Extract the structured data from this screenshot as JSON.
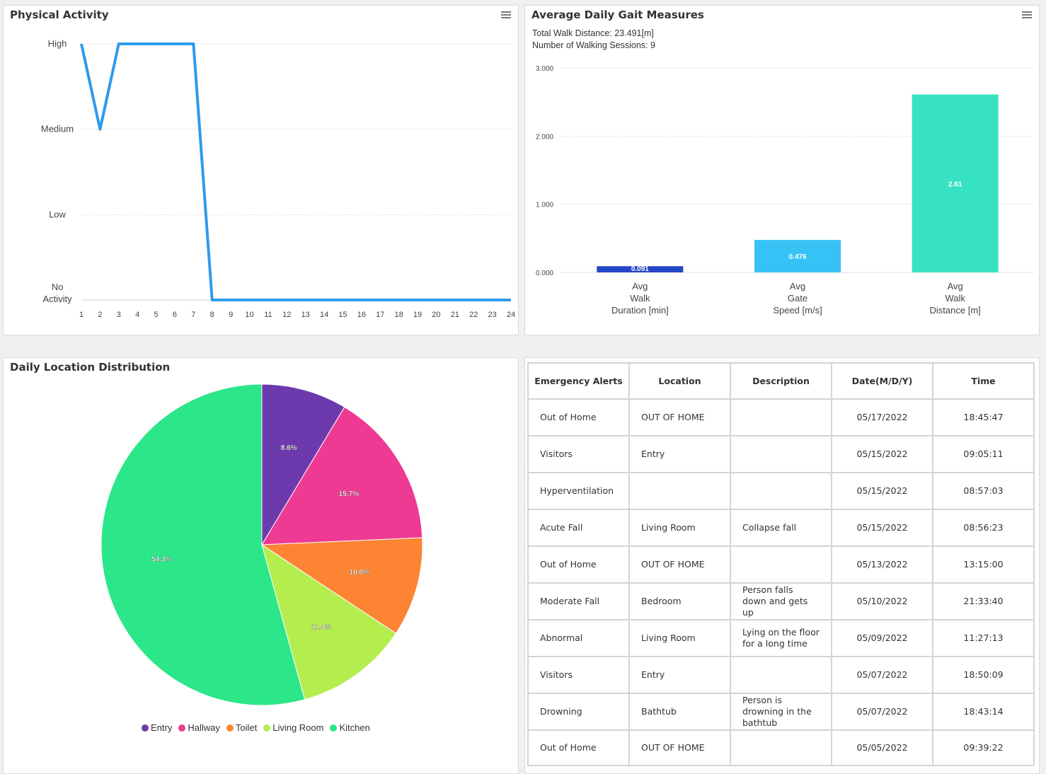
{
  "physical_activity": {
    "title": "Physical Activity",
    "menu_icon": "hamburger-menu-icon",
    "chart_data": {
      "type": "line",
      "x": [
        1,
        2,
        3,
        4,
        5,
        6,
        7,
        8,
        9,
        10,
        11,
        12,
        13,
        14,
        15,
        16,
        17,
        18,
        19,
        20,
        21,
        22,
        23,
        24
      ],
      "y_levels": [
        "No Activity",
        "Low",
        "Medium",
        "High"
      ],
      "series": [
        {
          "values": [
            3,
            2,
            3,
            3,
            3,
            3,
            3,
            0,
            0,
            0,
            0,
            0,
            0,
            0,
            0,
            0,
            0,
            0,
            0,
            0,
            0,
            0,
            0,
            0
          ]
        }
      ],
      "color": "#2e9bec",
      "grid": true
    }
  },
  "gait": {
    "title": "Average Daily Gait Measures",
    "menu_icon": "hamburger-menu-icon",
    "total_distance": "Total Walk Distance: 23.491[m]",
    "sessions": "Number of Walking Sessions: 9",
    "chart_data": {
      "type": "bar",
      "categories": [
        [
          "Avg",
          "Walk",
          "Duration [min]"
        ],
        [
          "Avg",
          "Gate",
          "Speed [m/s]"
        ],
        [
          "Avg",
          "Walk",
          "Distance [m]"
        ]
      ],
      "values": [
        0.091,
        0.476,
        2.61
      ],
      "labels": [
        "0.091",
        "0.476",
        "2.61"
      ],
      "colors": [
        "#2546c7",
        "#37c2f5",
        "#37e2c2"
      ],
      "yticks": [
        "0.000",
        "1.000",
        "2.000",
        "3.000"
      ],
      "ylim": [
        0,
        3
      ],
      "grid": true
    }
  },
  "location": {
    "title": "Daily Location Distribution",
    "chart_data": {
      "type": "pie",
      "categories": [
        "Entry",
        "Hallway",
        "Toilet",
        "Living Room",
        "Kitchen"
      ],
      "values": [
        8.6,
        15.7,
        10.0,
        11.4,
        54.3
      ],
      "labels": [
        "8.6%",
        "15.7%",
        "10.0%",
        "11.4%",
        "54.3%"
      ],
      "colors": [
        "#6c3aad",
        "#ee3a92",
        "#fd8433",
        "#b4ed4e",
        "#2ce68a"
      ],
      "legend_position": "bottom"
    }
  },
  "alerts": {
    "headers": [
      "Emergency Alerts",
      "Location",
      "Description",
      "Date(M/D/Y)",
      "Time"
    ],
    "rows": [
      [
        "Out of Home",
        "OUT OF HOME",
        "",
        "05/17/2022",
        "18:45:47"
      ],
      [
        "Visitors",
        "Entry",
        "",
        "05/15/2022",
        "09:05:11"
      ],
      [
        "Hyperventilation",
        "",
        "",
        "05/15/2022",
        "08:57:03"
      ],
      [
        "Acute Fall",
        "Living Room",
        "Collapse fall",
        "05/15/2022",
        "08:56:23"
      ],
      [
        "Out of Home",
        "OUT OF HOME",
        "",
        "05/13/2022",
        "13:15:00"
      ],
      [
        "Moderate Fall",
        "Bedroom",
        "Person falls down and gets up",
        "05/10/2022",
        "21:33:40"
      ],
      [
        "Abnormal",
        "Living Room",
        "Lying on the floor for a long time",
        "05/09/2022",
        "11:27:13"
      ],
      [
        "Visitors",
        "Entry",
        "",
        "05/07/2022",
        "18:50:09"
      ],
      [
        "Drowning",
        "Bathtub",
        "Person is drowning in the bathtub",
        "05/07/2022",
        "18:43:14"
      ],
      [
        "Out of Home",
        "OUT OF HOME",
        "",
        "05/05/2022",
        "09:39:22"
      ]
    ]
  }
}
